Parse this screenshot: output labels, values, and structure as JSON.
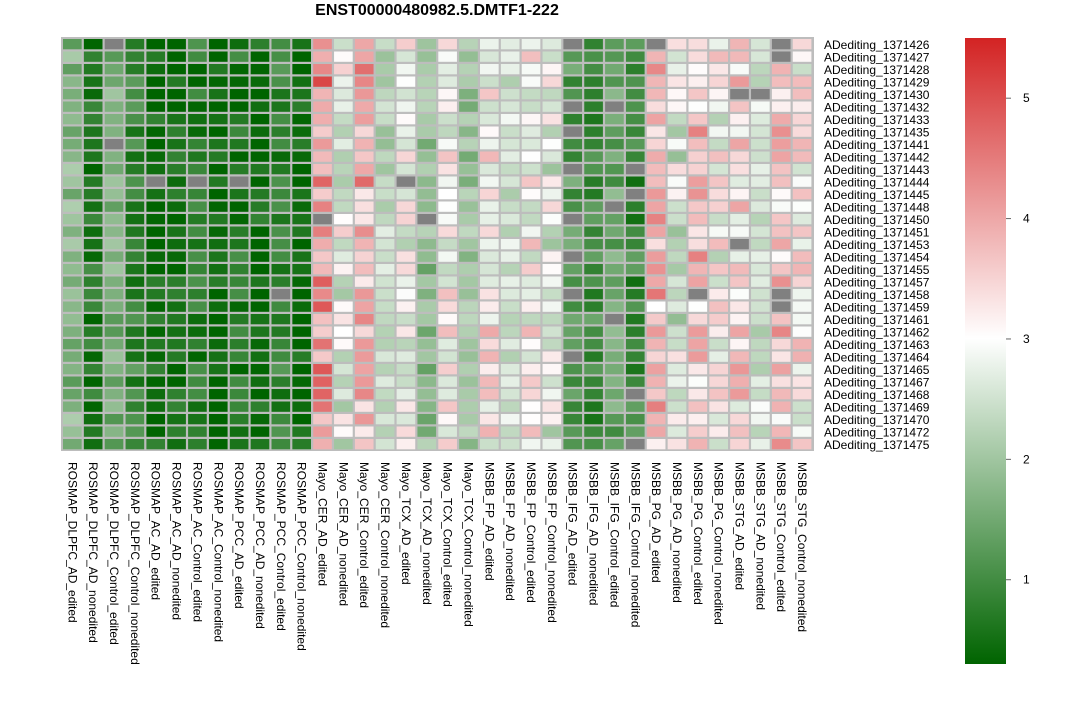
{
  "chart_data": {
    "type": "heatmap",
    "title": "ENST00000480982.5.DMTF1-222",
    "rows": [
      "ADediting_1371426",
      "ADediting_1371427",
      "ADediting_1371428",
      "ADediting_1371429",
      "ADediting_1371430",
      "ADediting_1371432",
      "ADediting_1371433",
      "ADediting_1371435",
      "ADediting_1371441",
      "ADediting_1371442",
      "ADediting_1371443",
      "ADediting_1371444",
      "ADediting_1371445",
      "ADediting_1371448",
      "ADediting_1371450",
      "ADediting_1371451",
      "ADediting_1371453",
      "ADediting_1371454",
      "ADediting_1371455",
      "ADediting_1371457",
      "ADediting_1371458",
      "ADediting_1371459",
      "ADediting_1371461",
      "ADediting_1371462",
      "ADediting_1371463",
      "ADediting_1371464",
      "ADediting_1371465",
      "ADediting_1371467",
      "ADediting_1371468",
      "ADediting_1371469",
      "ADediting_1371470",
      "ADediting_1371472",
      "ADediting_1371475"
    ],
    "columns": [
      "ROSMAP_DLPFC_AD_edited",
      "ROSMAP_DLPFC_AD_nonedited",
      "ROSMAP_DLPFC_Control_edited",
      "ROSMAP_DLPFC_Control_nonedited",
      "ROSMAP_AC_AD_edited",
      "ROSMAP_AC_AD_nonedited",
      "ROSMAP_AC_Control_edited",
      "ROSMAP_AC_Control_nonedited",
      "ROSMAP_PCC_AD_edited",
      "ROSMAP_PCC_AD_nonedited",
      "ROSMAP_PCC_Control_edited",
      "ROSMAP_PCC_Control_nonedited",
      "Mayo_CER_AD_edited",
      "Mayo_CER_AD_nonedited",
      "Mayo_CER_Control_edited",
      "Mayo_CER_Control_nonedited",
      "Mayo_TCX_AD_edited",
      "Mayo_TCX_AD_nonedited",
      "Mayo_TCX_Control_edited",
      "Mayo_TCX_Control_nonedited",
      "MSBB_FP_AD_edited",
      "MSBB_FP_AD_nonedited",
      "MSBB_FP_Control_edited",
      "MSBB_FP_Control_nonedited",
      "MSBB_IFG_AD_edited",
      "MSBB_IFG_AD_nonedited",
      "MSBB_IFG_Control_edited",
      "MSBB_IFG_Control_nonedited",
      "MSBB_PG_AD_edited",
      "MSBB_PG_AD_nonedited",
      "MSBB_PG_Control_edited",
      "MSBB_PG_Control_nonedited",
      "MSBB_STG_AD_edited",
      "MSBB_STG_AD_nonedited",
      "MSBB_STG_Control_edited",
      "MSBB_STG_Control_nonedited"
    ],
    "column_baseline": [
      1.7,
      0.6,
      1.6,
      0.9,
      0.4,
      0.4,
      0.7,
      0.3,
      0.6,
      0.4,
      0.8,
      0.3,
      4.3,
      2.8,
      4.0,
      2.3,
      2.8,
      1.8,
      3.0,
      1.9,
      3.2,
      2.5,
      3.1,
      2.7,
      1.2,
      1.0,
      1.4,
      0.9,
      3.8,
      2.6,
      3.7,
      3.0,
      3.4,
      2.5,
      3.6,
      3.2
    ],
    "missing_cells": [
      [
        0,
        2
      ],
      [
        0,
        24
      ],
      [
        0,
        28
      ],
      [
        0,
        34
      ],
      [
        1,
        34
      ],
      [
        4,
        33
      ],
      [
        5,
        24
      ],
      [
        5,
        26
      ],
      [
        7,
        24
      ],
      [
        10,
        24
      ],
      [
        10,
        27
      ],
      [
        12,
        27
      ],
      [
        13,
        26
      ],
      [
        14,
        24
      ],
      [
        17,
        24
      ],
      [
        20,
        24
      ],
      [
        20,
        30
      ],
      [
        20,
        34
      ],
      [
        22,
        26
      ],
      [
        25,
        24
      ],
      [
        28,
        27
      ],
      [
        32,
        27
      ],
      [
        8,
        2
      ],
      [
        11,
        4
      ],
      [
        11,
        6
      ],
      [
        11,
        8
      ],
      [
        20,
        10
      ],
      [
        14,
        12
      ],
      [
        14,
        17
      ],
      [
        11,
        16
      ],
      [
        4,
        32
      ],
      [
        16,
        32
      ],
      [
        21,
        34
      ]
    ],
    "color_scale": {
      "min": 0.3,
      "max": 5.5,
      "low": "#006400",
      "mid": "#ffffff",
      "high": "#d32323",
      "midpoint": 3.0,
      "missing": "#808080"
    },
    "colorbar_ticks": [
      1,
      2,
      3,
      4,
      5
    ],
    "legend_position": "right"
  }
}
